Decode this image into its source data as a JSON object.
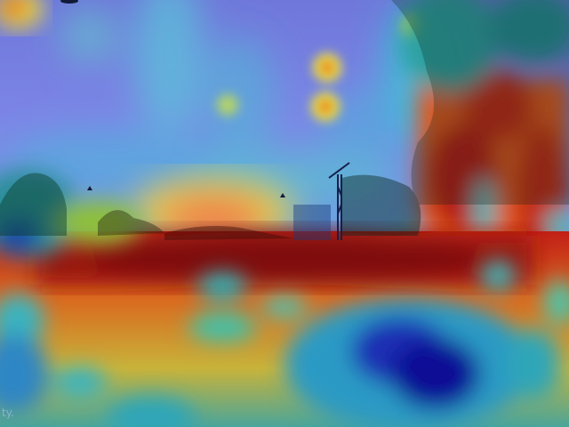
{
  "image": {
    "kind": "heatmap-overlay-photo",
    "subject": "outdoor-street-scene-with-trees-and-construction-crane",
    "colormap": [
      "#00008b",
      "#1f3bd6",
      "#2aa8d8",
      "#37c9b0",
      "#9adf4a",
      "#f2e23a",
      "#f08a24",
      "#d7261e",
      "#8b0f0f"
    ],
    "sky_tint": "#7b7fe0",
    "corner_text": "ty."
  }
}
